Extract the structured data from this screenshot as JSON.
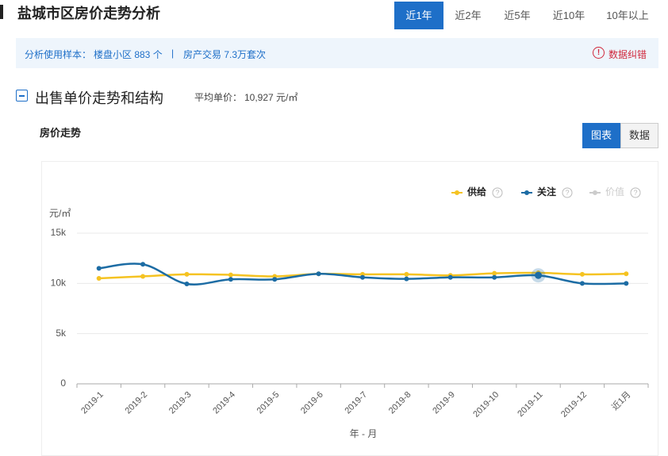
{
  "header": {
    "title": "盐城市区房价走势分析",
    "tabs": [
      "近1年",
      "近2年",
      "近5年",
      "近10年",
      "10年以上"
    ],
    "active_tab": 0
  },
  "info": {
    "label": "分析使用样本：",
    "communities": "楼盘小区 883 个",
    "separator": "|",
    "transactions": "房产交易 7.3万套次",
    "report": "数据纠错"
  },
  "section": {
    "title": "出售单价走势和结构",
    "avg_label": "平均单价：",
    "avg_value": "10,927 元/㎡"
  },
  "panel": {
    "title": "房价走势",
    "buttons": [
      "图表",
      "数据"
    ],
    "active_button": 0
  },
  "chart_data": {
    "type": "line",
    "y_unit": "元/㎡",
    "x_label": "年 - 月",
    "categories": [
      "2019-1",
      "2019-2",
      "2019-3",
      "2019-4",
      "2019-5",
      "2019-6",
      "2019-7",
      "2019-8",
      "2019-9",
      "2019-10",
      "2019-11",
      "2019-12",
      "近1月"
    ],
    "series": [
      {
        "name": "供给",
        "color": "#f5c322",
        "values": [
          10500,
          10700,
          10900,
          10850,
          10700,
          10950,
          10900,
          10900,
          10800,
          11000,
          11050,
          10900,
          10950
        ]
      },
      {
        "name": "关注",
        "color": "#1c6ca4",
        "values": [
          11500,
          11900,
          9950,
          10400,
          10400,
          10950,
          10600,
          10450,
          10600,
          10600,
          10800,
          10000,
          10000
        ]
      }
    ],
    "inactive_legend": {
      "name": "价值",
      "color": "#cccccc"
    },
    "highlight_index": 10,
    "ylim": [
      0,
      15000
    ],
    "yticks": [
      {
        "value": 0,
        "label": "0"
      },
      {
        "value": 5000,
        "label": "5k"
      },
      {
        "value": 10000,
        "label": "10k"
      },
      {
        "value": 15000,
        "label": "15k"
      }
    ],
    "grid": true
  }
}
